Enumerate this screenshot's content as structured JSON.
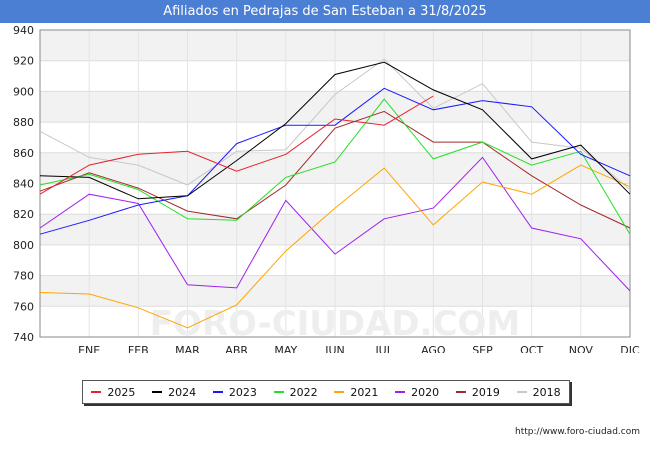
{
  "title": "Afiliados en Pedrajas de San Esteban a 31/8/2025",
  "source": "http://www.foro-ciudad.com",
  "watermark": "FORO-CIUDAD.COM",
  "chart_data": {
    "type": "line",
    "x": [
      "",
      "ENE",
      "FEB",
      "MAR",
      "ABR",
      "MAY",
      "JUN",
      "JUL",
      "AGO",
      "SEP",
      "OCT",
      "NOV",
      "DIC"
    ],
    "xlabel": "",
    "ylabel": "",
    "ylim": [
      740,
      940
    ],
    "yticks": [
      740,
      760,
      780,
      800,
      820,
      840,
      860,
      880,
      900,
      920,
      940
    ],
    "grid": true,
    "legend_position": "bottom",
    "series": [
      {
        "name": "2025",
        "color": "#e8202a",
        "values": [
          833,
          852,
          859,
          861,
          848,
          859,
          882,
          878,
          897,
          null,
          null,
          null,
          null
        ]
      },
      {
        "name": "2024",
        "color": "#000000",
        "values": [
          845,
          844,
          830,
          832,
          855,
          879,
          911,
          919,
          901,
          888,
          856,
          865,
          833
        ]
      },
      {
        "name": "2023",
        "color": "#1a1aff",
        "values": [
          807,
          816,
          826,
          832,
          866,
          878,
          878,
          902,
          888,
          894,
          890,
          859,
          845
        ]
      },
      {
        "name": "2022",
        "color": "#22e022",
        "values": [
          839,
          846,
          836,
          817,
          816,
          844,
          854,
          895,
          856,
          867,
          852,
          861,
          807
        ]
      },
      {
        "name": "2021",
        "color": "#ffa500",
        "values": [
          769,
          768,
          759,
          746,
          761,
          796,
          824,
          850,
          813,
          841,
          833,
          852,
          838
        ]
      },
      {
        "name": "2020",
        "color": "#a020f0",
        "values": [
          811,
          833,
          827,
          774,
          772,
          829,
          794,
          817,
          824,
          857,
          811,
          804,
          770
        ]
      },
      {
        "name": "2019",
        "color": "#a52a2a",
        "values": [
          835,
          847,
          837,
          822,
          817,
          839,
          876,
          887,
          867,
          867,
          845,
          826,
          811
        ]
      },
      {
        "name": "2018",
        "color": "#c8c8c8",
        "values": [
          874,
          857,
          852,
          839,
          861,
          862,
          898,
          921,
          889,
          905,
          867,
          863,
          836
        ]
      }
    ]
  }
}
